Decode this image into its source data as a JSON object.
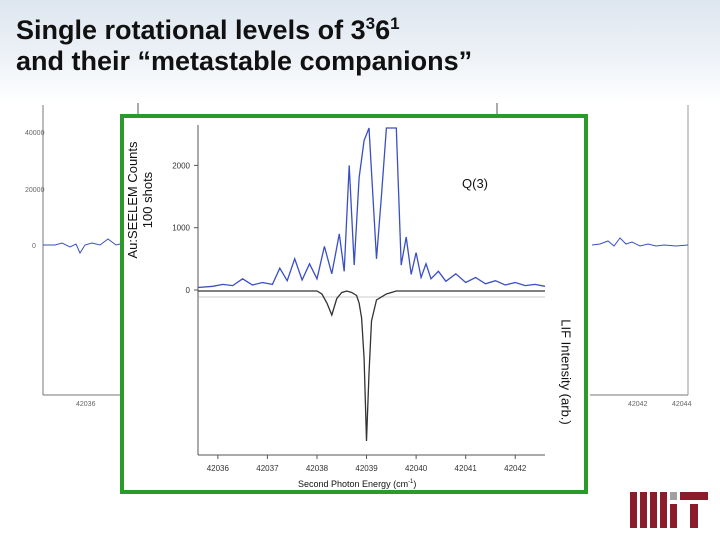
{
  "slide": {
    "title_line1_pre": "Single rotational levels of 3",
    "title_sup1": "3",
    "title_mid": "6",
    "title_sup2": "1",
    "title_line2": "and their “metastable companions”"
  },
  "chart_data": {
    "type": "line",
    "xlabel_pre": "Second Photon Energy (cm",
    "xlabel_sup": "-1",
    "xlabel_post": ")",
    "ylabel_left_line1": "Au:SEELEM Counts",
    "ylabel_left_line2": "100 shots",
    "ylabel_right": "LIF Intensity (arb.)",
    "annotation": "Q(3)",
    "x_ticks": [
      "42036",
      "42037",
      "42038",
      "42039",
      "42040",
      "42041",
      "42042"
    ],
    "xlim": [
      42035.6,
      42042.6
    ],
    "y_ticks_left": [
      "0",
      "1000",
      "2000"
    ],
    "ylim_left": [
      0,
      2600
    ],
    "series": [
      {
        "color": "#3a4fc4",
        "x": [
          42035.6,
          42035.9,
          42036.1,
          42036.3,
          42036.5,
          42036.7,
          42036.9,
          42037.1,
          42037.25,
          42037.4,
          42037.55,
          42037.7,
          42037.85,
          42038.0,
          42038.15,
          42038.3,
          42038.45,
          42038.55,
          42038.65,
          42038.75,
          42038.85,
          42038.95,
          42039.05,
          42039.2,
          42039.3,
          42039.4,
          42039.5,
          42039.6,
          42039.7,
          42039.8,
          42039.9,
          42040.0,
          42040.1,
          42040.2,
          42040.3,
          42040.45,
          42040.6,
          42040.8,
          42041.0,
          42041.2,
          42041.4,
          42041.6,
          42041.8,
          42042.0,
          42042.2,
          42042.4,
          42042.6
        ],
        "y": [
          40,
          60,
          90,
          70,
          180,
          80,
          120,
          90,
          350,
          150,
          500,
          160,
          420,
          180,
          700,
          260,
          900,
          300,
          2000,
          400,
          1800,
          2400,
          2600,
          500,
          1500,
          2600,
          2600,
          2600,
          400,
          850,
          250,
          600,
          200,
          420,
          180,
          300,
          140,
          260,
          120,
          200,
          100,
          150,
          80,
          120,
          70,
          90,
          60
        ]
      },
      {
        "color": "#333333",
        "x": [
          42035.6,
          42036.0,
          42036.5,
          42037.0,
          42037.4,
          42037.6,
          42037.8,
          42038.0,
          42038.1,
          42038.2,
          42038.3,
          42038.4,
          42038.5,
          42038.6,
          42038.7,
          42038.8,
          42038.85,
          42038.9,
          42038.95,
          42039.0,
          42039.05,
          42039.1,
          42039.2,
          42039.4,
          42039.6,
          42039.8,
          42040.0,
          42040.5,
          42041.0,
          42041.5,
          42042.0,
          42042.6
        ],
        "lif": [
          0,
          0,
          0,
          0,
          0,
          0,
          0,
          0,
          -0.02,
          -0.08,
          -0.16,
          -0.05,
          -0.01,
          0,
          -0.01,
          -0.03,
          -0.08,
          -0.18,
          -0.45,
          -1.0,
          -0.55,
          -0.2,
          -0.06,
          -0.02,
          0,
          0,
          0,
          0,
          0,
          0,
          0,
          0
        ]
      }
    ]
  }
}
